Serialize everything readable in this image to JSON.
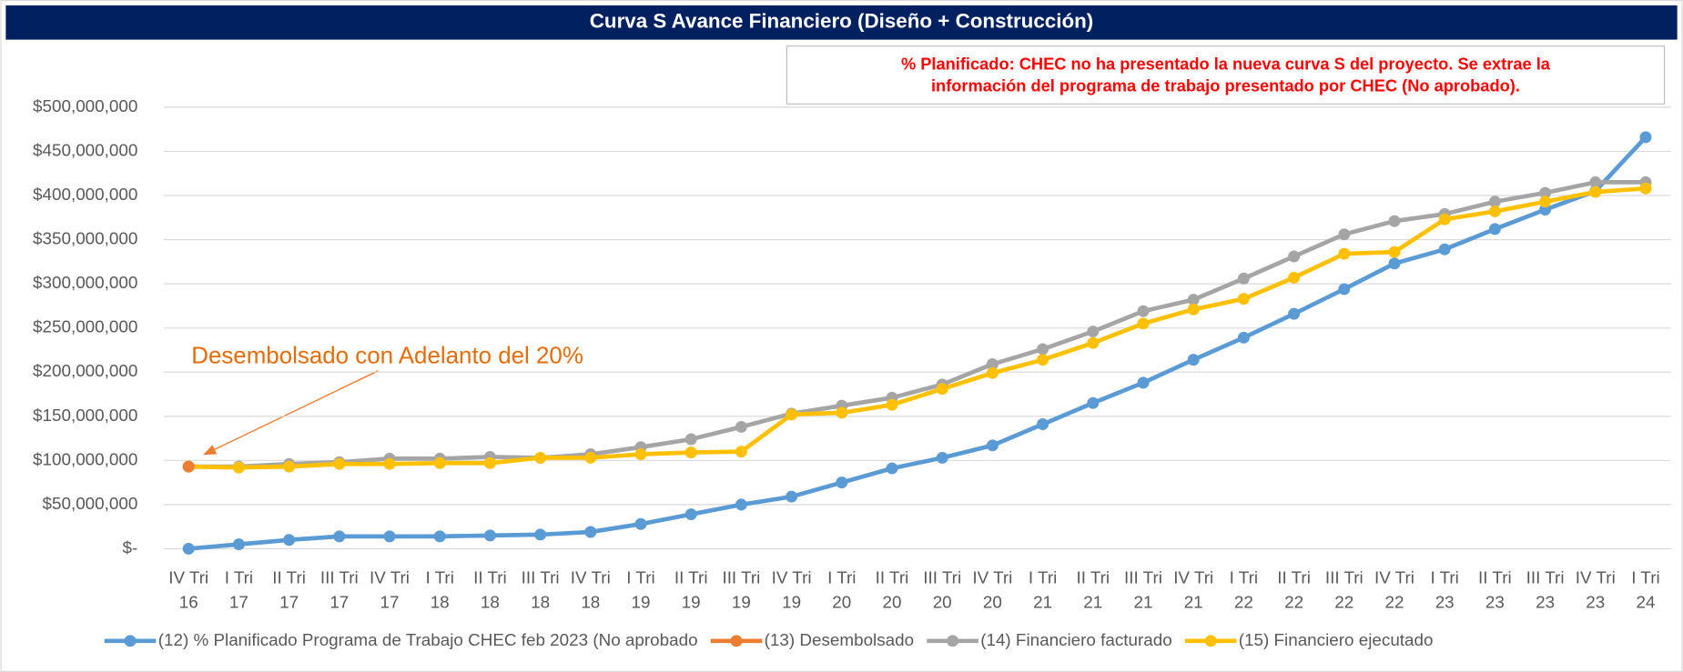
{
  "chart_data": {
    "type": "line",
    "title": "Curva S Avance Financiero (Diseño + Construcción)",
    "note": [
      "% Planificado: CHEC no ha presentado la nueva curva S del proyecto. Se extrae la",
      "información del programa de trabajo presentado por CHEC (No aprobado)."
    ],
    "annotation": "Desembolsado con Adelanto del 20%",
    "categories": [
      "IV Tri 16",
      "I Tri 17",
      "II Tri 17",
      "III Tri 17",
      "IV Tri 17",
      "I Tri 18",
      "II Tri 18",
      "III Tri 18",
      "IV Tri 18",
      "I Tri 19",
      "II Tri 19",
      "III Tri 19",
      "IV Tri 19",
      "I Tri 20",
      "II Tri 20",
      "III Tri 20",
      "IV Tri 20",
      "I Tri 21",
      "II Tri 21",
      "III Tri 21",
      "IV Tri 21",
      "I Tri 22",
      "II Tri 22",
      "III Tri 22",
      "IV Tri 22",
      "I Tri 23",
      "II Tri 23",
      "III Tri 23",
      "IV Tri 23",
      "I Tri 24"
    ],
    "series": [
      {
        "name": "(12) % Planificado Programa de Trabajo CHEC feb 2023 (No aprobado",
        "color": "#5b9bd5",
        "values": [
          0,
          5000000,
          10000000,
          14000000,
          14000000,
          14000000,
          15000000,
          16000000,
          19000000,
          28000000,
          39000000,
          50000000,
          59000000,
          75000000,
          91000000,
          103000000,
          117000000,
          141000000,
          165000000,
          188000000,
          214000000,
          239000000,
          266000000,
          294000000,
          323000000,
          339000000,
          362000000,
          384000000,
          405000000,
          466000000
        ]
      },
      {
        "name": "(13) Desembolsado",
        "color": "#ed7d31",
        "values": [
          93000000,
          null,
          null,
          null,
          null,
          null,
          null,
          null,
          null,
          null,
          null,
          null,
          null,
          null,
          null,
          null,
          null,
          null,
          null,
          null,
          null,
          null,
          null,
          null,
          null,
          null,
          null,
          null,
          null,
          null
        ]
      },
      {
        "name": "(14) Financiero facturado",
        "color": "#a5a5a5",
        "values": [
          93000000,
          93000000,
          96000000,
          98000000,
          102000000,
          102000000,
          104000000,
          103000000,
          107000000,
          115000000,
          124000000,
          138000000,
          153000000,
          162000000,
          171000000,
          186000000,
          209000000,
          226000000,
          246000000,
          269000000,
          282000000,
          306000000,
          331000000,
          356000000,
          371000000,
          379000000,
          393000000,
          403000000,
          415000000,
          415000000
        ]
      },
      {
        "name": "(15) Financiero ejecutado",
        "color": "#ffc000",
        "values": [
          93000000,
          92000000,
          93000000,
          96000000,
          96000000,
          97000000,
          97000000,
          103000000,
          103000000,
          107000000,
          109000000,
          110000000,
          152000000,
          154000000,
          163000000,
          181000000,
          199000000,
          214000000,
          233000000,
          255000000,
          271000000,
          283000000,
          307000000,
          334000000,
          336000000,
          373000000,
          382000000,
          393000000,
          404000000,
          408000000
        ]
      }
    ],
    "ylim": [
      0,
      500000000
    ],
    "yticks": [
      {
        "value": 0,
        "label": "$-"
      },
      {
        "value": 50000000,
        "label": "$50,000,000"
      },
      {
        "value": 100000000,
        "label": "$100,000,000"
      },
      {
        "value": 150000000,
        "label": "$150,000,000"
      },
      {
        "value": 200000000,
        "label": "$200,000,000"
      },
      {
        "value": 250000000,
        "label": "$250,000,000"
      },
      {
        "value": 300000000,
        "label": "$300,000,000"
      },
      {
        "value": 350000000,
        "label": "$350,000,000"
      },
      {
        "value": 400000000,
        "label": "$400,000,000"
      },
      {
        "value": 450000000,
        "label": "$450,000,000"
      },
      {
        "value": 500000000,
        "label": "$500,000,000"
      }
    ],
    "grid": true,
    "legend": "bottom"
  }
}
